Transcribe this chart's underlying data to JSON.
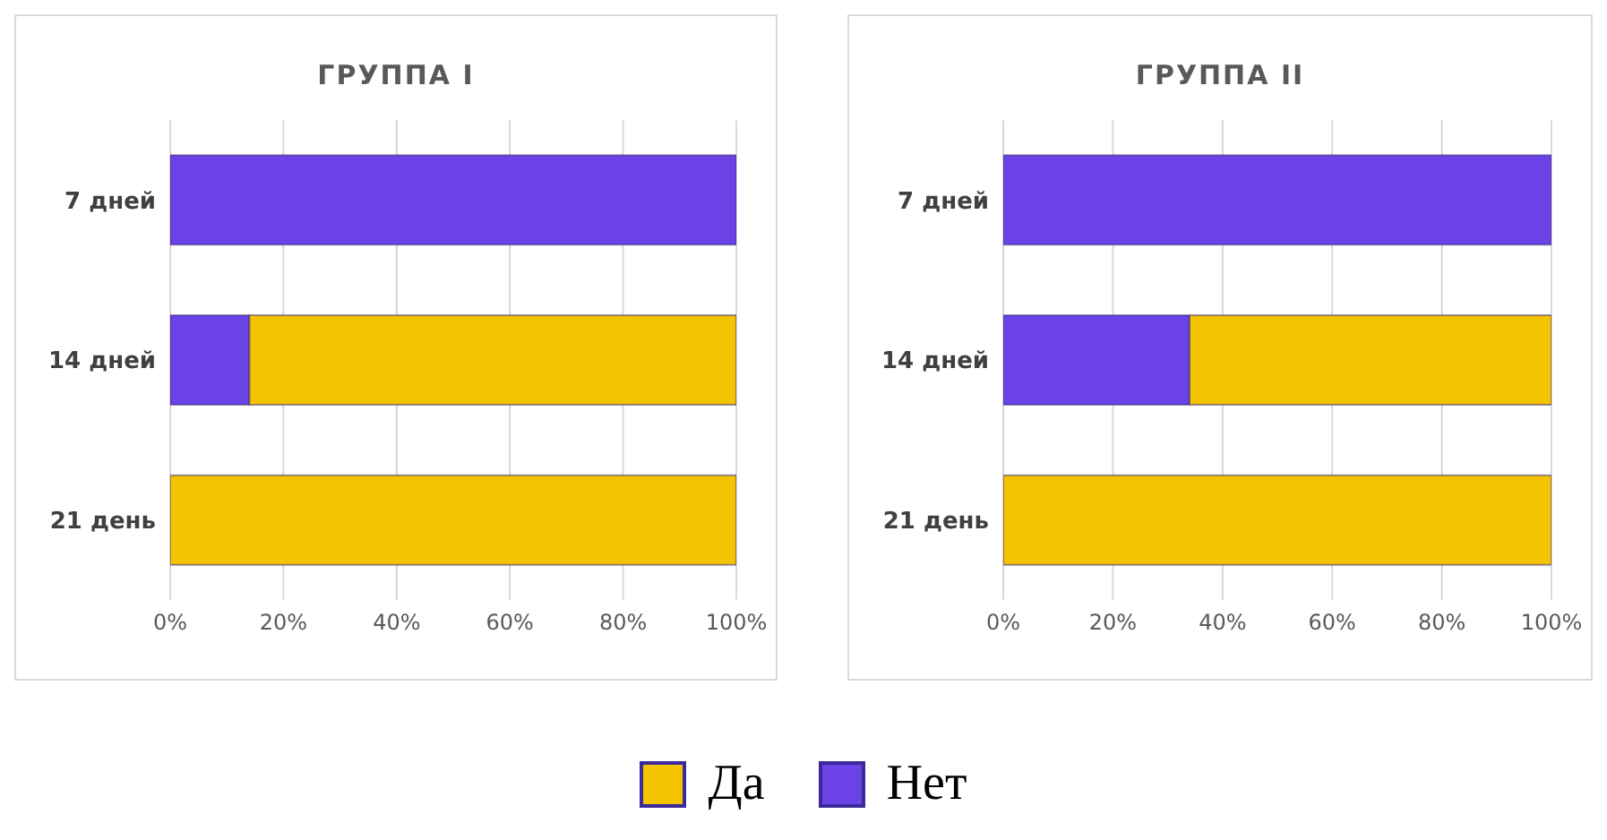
{
  "chart_data": [
    {
      "type": "bar",
      "title": "ГРУППА I",
      "orientation": "horizontal",
      "stacked": true,
      "categories": [
        "7 дней",
        "14 дней",
        "21 день"
      ],
      "series": [
        {
          "name": "Нет",
          "color": "#6a42e6",
          "values": [
            100,
            14,
            0
          ]
        },
        {
          "name": "Да",
          "color": "#f5c400",
          "values": [
            0,
            86,
            100
          ]
        }
      ],
      "xlim": [
        0,
        100
      ],
      "xticks": [
        {
          "value": 0,
          "label": "0%"
        },
        {
          "value": 20,
          "label": "20%"
        },
        {
          "value": 40,
          "label": "40%"
        },
        {
          "value": 60,
          "label": "60%"
        },
        {
          "value": 80,
          "label": "80%"
        },
        {
          "value": 100,
          "label": "100%"
        }
      ],
      "grid": "x",
      "legend": "bottom"
    },
    {
      "type": "bar",
      "title": "ГРУППА II",
      "orientation": "horizontal",
      "stacked": true,
      "categories": [
        "7 дней",
        "14 дней",
        "21 день"
      ],
      "series": [
        {
          "color": "#6a42e6",
          "values": [
            100,
            34,
            0
          ]
        },
        {
          "color": "#f5c400",
          "values": [
            0,
            66,
            100
          ]
        }
      ],
      "xlim": [
        0,
        100
      ],
      "xticks": [
        {
          "value": 0,
          "label": "0%"
        },
        {
          "value": 20,
          "label": "20%"
        },
        {
          "value": 40,
          "label": "40%"
        },
        {
          "value": 60,
          "label": "60%"
        },
        {
          "value": 80,
          "label": "80%"
        },
        {
          "value": 100,
          "label": "100%"
        }
      ],
      "grid": "x"
    }
  ]
}
